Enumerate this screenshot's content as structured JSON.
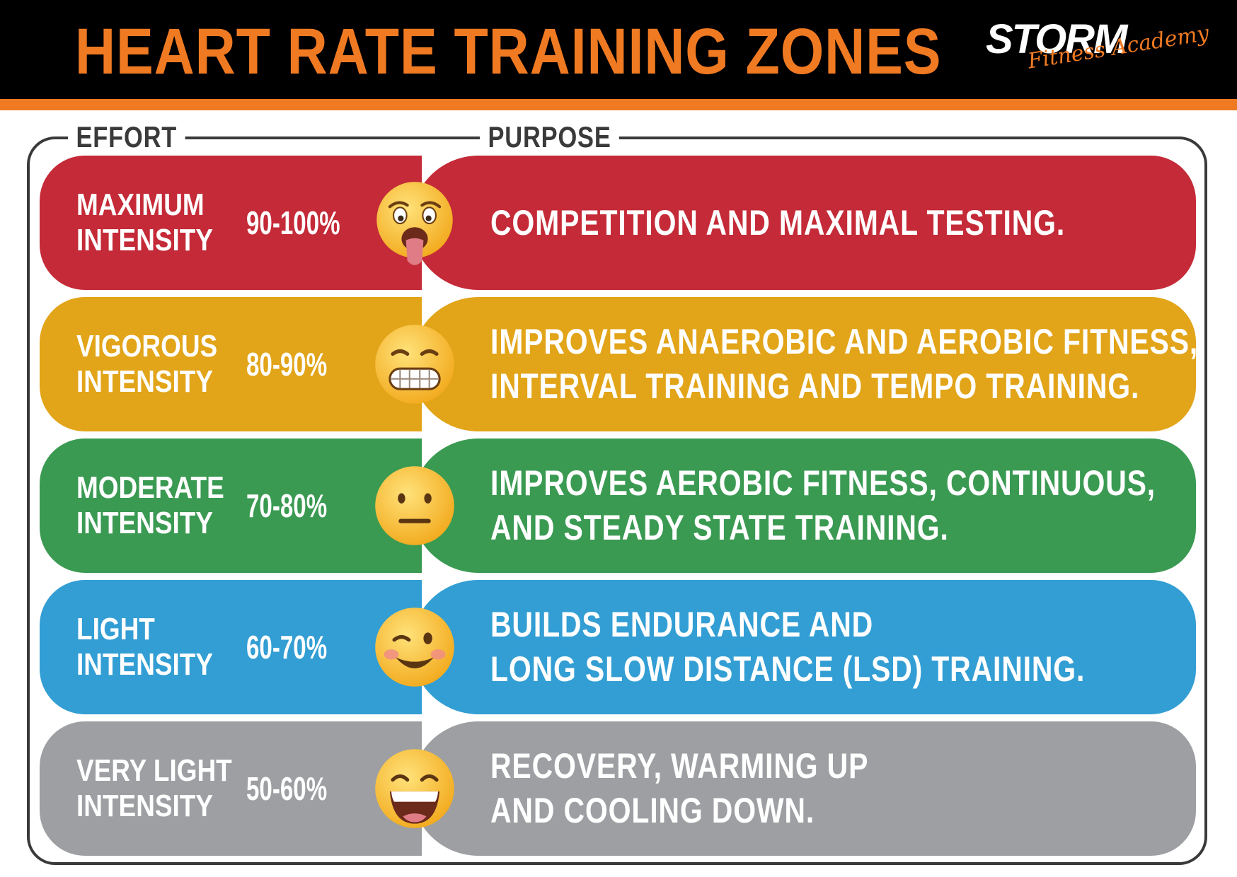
{
  "header": {
    "title": "HEART RATE TRAINING ZONES",
    "logo_brand": "STORM",
    "logo_subtitle": "Fitness Academy"
  },
  "columns": {
    "effort": "EFFORT",
    "purpose": "PURPOSE"
  },
  "zones": [
    {
      "effort_line1": "MAXIMUM",
      "effort_line2": "INTENSITY",
      "range": "90-100%",
      "emoji": "exhausted-face-icon",
      "purpose_line1": "COMPETITION AND MAXIMAL TESTING.",
      "purpose_line2": "",
      "color": "#c42a37"
    },
    {
      "effort_line1": "VIGOROUS",
      "effort_line2": "INTENSITY",
      "range": "80-90%",
      "emoji": "grimacing-face-icon",
      "purpose_line1": "IMPROVES ANAEROBIC AND AEROBIC FITNESS,",
      "purpose_line2": "INTERVAL TRAINING AND TEMPO TRAINING.",
      "color": "#e2a418"
    },
    {
      "effort_line1": "MODERATE",
      "effort_line2": "INTENSITY",
      "range": "70-80%",
      "emoji": "neutral-face-icon",
      "purpose_line1": "IMPROVES AEROBIC FITNESS, CONTINUOUS,",
      "purpose_line2": "AND STEADY STATE TRAINING.",
      "color": "#3a9a52"
    },
    {
      "effort_line1": "LIGHT",
      "effort_line2": "INTENSITY",
      "range": "60-70%",
      "emoji": "winking-face-icon",
      "purpose_line1": "BUILDS ENDURANCE AND",
      "purpose_line2": "LONG SLOW DISTANCE (LSD) TRAINING.",
      "color": "#329ed4"
    },
    {
      "effort_line1": "VERY LIGHT",
      "effort_line2": "INTENSITY",
      "range": "50-60%",
      "emoji": "laughing-face-icon",
      "purpose_line1": "RECOVERY, WARMING UP",
      "purpose_line2": "AND COOLING DOWN.",
      "color": "#9d9fa2"
    }
  ],
  "colors": {
    "accent": "#f07a22",
    "header_bg": "#000000",
    "frame": "#3a3a3a"
  }
}
